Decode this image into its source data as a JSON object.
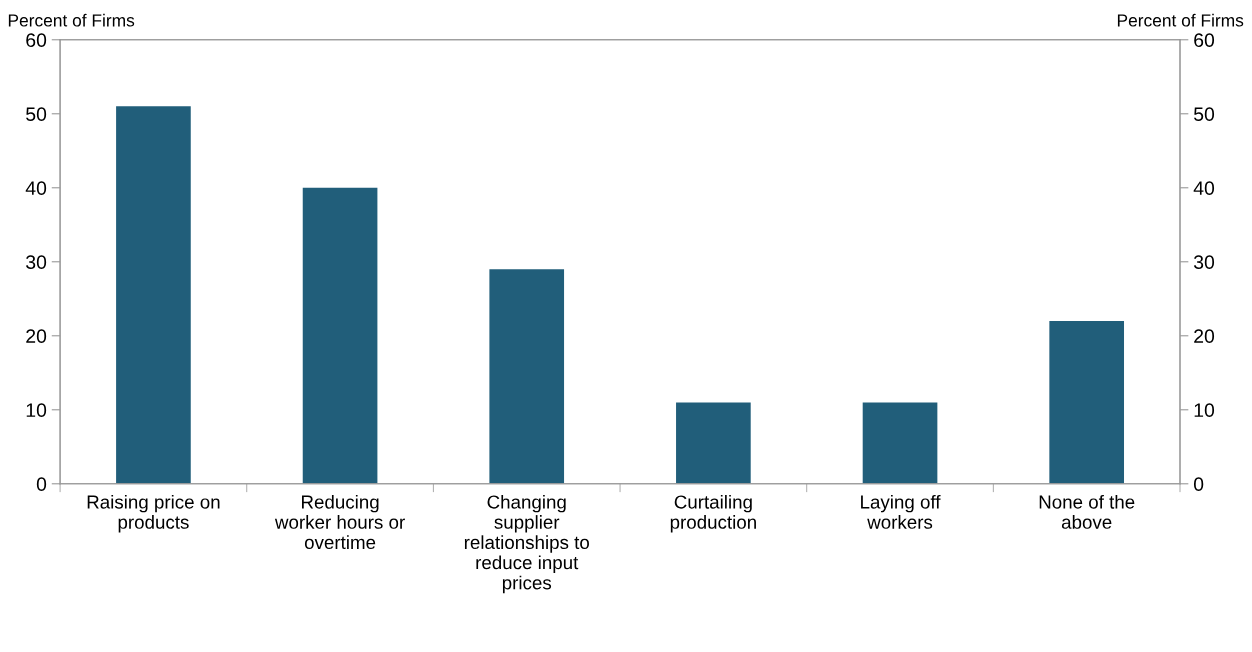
{
  "chart_data": {
    "type": "bar",
    "categories": [
      "Raising price on\nproducts",
      "Reducing\nworker hours or\novertime",
      "Changing\nsupplier\nrelationships to\nreduce input\nprices",
      "Curtailing\nproduction",
      "Laying off\nworkers",
      "None of the\nabove"
    ],
    "values": [
      51,
      40,
      29,
      11,
      11,
      22
    ],
    "color": "#215e7a",
    "ylabel": "Percent of Firms",
    "y2label": "Percent of Firms",
    "ylim": [
      0,
      60
    ],
    "yticks": [
      0,
      10,
      20,
      30,
      40,
      50,
      60
    ],
    "y2lim": [
      0,
      60
    ],
    "y2ticks": [
      0,
      10,
      20,
      30,
      40,
      50,
      60
    ],
    "grid": false,
    "legend": false
  }
}
